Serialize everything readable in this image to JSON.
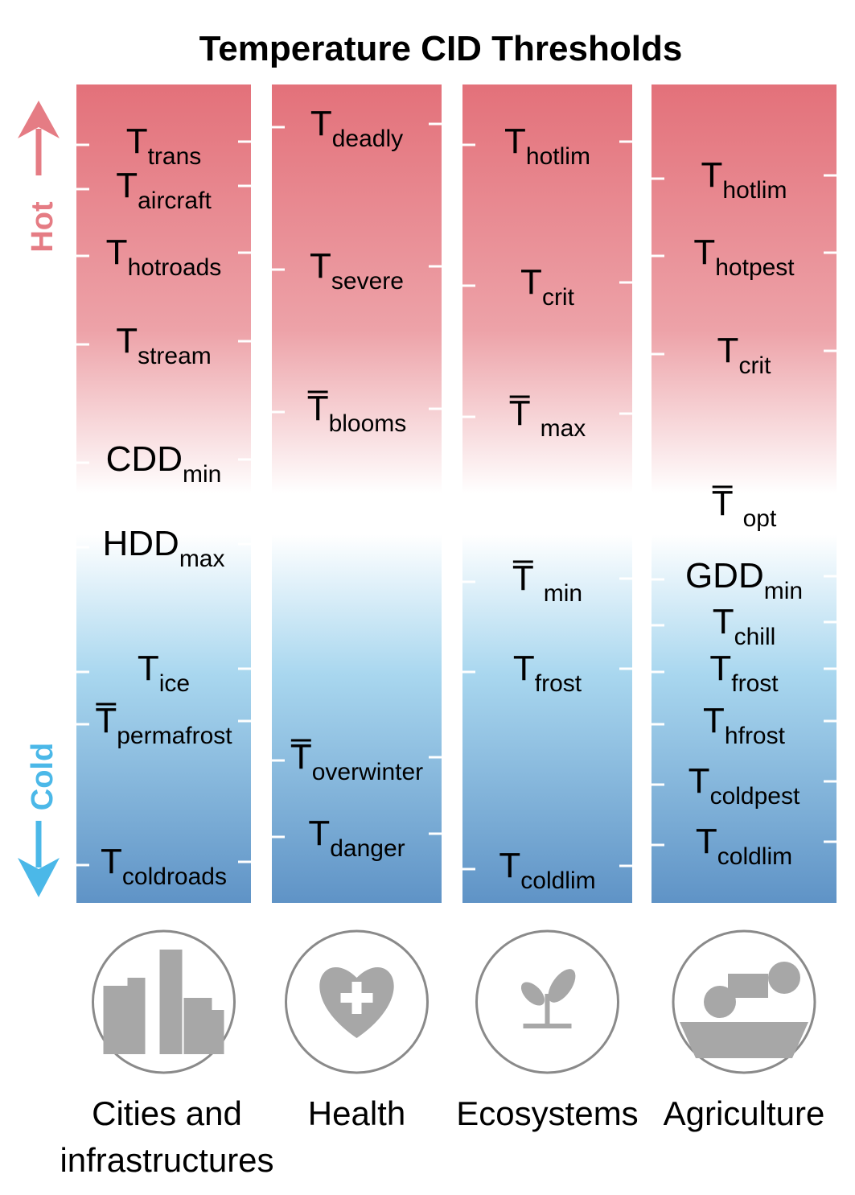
{
  "title": "Temperature CID Thresholds",
  "hot_label": "Hot",
  "cold_label": "Cold",
  "columns": [
    {
      "label": [
        "Cities and",
        "infrastructures"
      ],
      "items": [
        {
          "base": "T",
          "sub": "trans"
        },
        {
          "base": "T",
          "sub": "aircraft"
        },
        {
          "base": "T",
          "sub": "hotroads"
        },
        {
          "base": "T",
          "sub": "stream"
        },
        {
          "base": "CDD",
          "sub": "min"
        },
        {
          "base": "HDD",
          "sub": "max"
        },
        {
          "base": "T",
          "sub": "ice"
        },
        {
          "base": "T",
          "sub": "permafrost",
          "overline": true
        },
        {
          "base": "T",
          "sub": "coldroads"
        }
      ]
    },
    {
      "label": [
        "Health"
      ],
      "items": [
        {
          "base": "T",
          "sub": "deadly"
        },
        {
          "base": "T",
          "sub": "severe"
        },
        {
          "base": "T",
          "sub": "blooms",
          "overline": true
        },
        {
          "base": "T",
          "sub": "overwinter",
          "overline": true
        },
        {
          "base": "T",
          "sub": "danger"
        }
      ]
    },
    {
      "label": [
        "Ecosystems"
      ],
      "items": [
        {
          "base": "T",
          "sub": "hotlim"
        },
        {
          "base": "T",
          "sub": "crit"
        },
        {
          "base": "T",
          "sub": "max",
          "overline": true
        },
        {
          "base": "T",
          "sub": "min",
          "overline": true
        },
        {
          "base": "T",
          "sub": "frost"
        },
        {
          "base": "T",
          "sub": "coldlim"
        }
      ]
    },
    {
      "label": [
        "Agriculture"
      ],
      "items": [
        {
          "base": "T",
          "sub": "hotlim"
        },
        {
          "base": "T",
          "sub": "hotpest"
        },
        {
          "base": "T",
          "sub": "crit"
        },
        {
          "base": "T",
          "sub": "opt",
          "overline": true
        },
        {
          "base": "GDD",
          "sub": "min"
        },
        {
          "base": "T",
          "sub": "chill"
        },
        {
          "base": "T",
          "sub": "frost"
        },
        {
          "base": "T",
          "sub": "hfrost"
        },
        {
          "base": "T",
          "sub": "coldpest"
        },
        {
          "base": "T",
          "sub": "coldlim"
        }
      ]
    }
  ]
}
